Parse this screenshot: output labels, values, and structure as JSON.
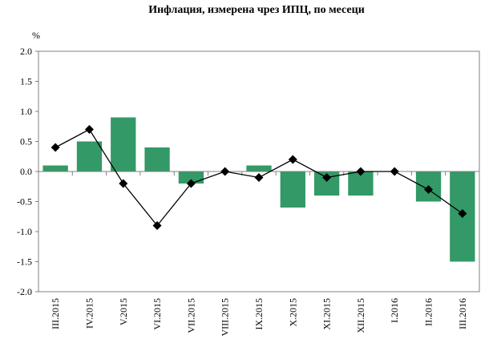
{
  "chart_data": {
    "type": "bar",
    "title": "Инфлация, измерена чрез ИПЦ, по месеци",
    "ylabel": "%",
    "xlabel": "",
    "ylim": [
      -2.0,
      2.0
    ],
    "yticks": [
      "2.0",
      "1.5",
      "1.0",
      "0.5",
      "0.0",
      "-0.5",
      "-1.0",
      "-1.5",
      "-2.0"
    ],
    "categories": [
      "III.2015",
      "IV.2015",
      "V.2015",
      "VI.2015",
      "VII.2015",
      "VIII.2015",
      "IX.2015",
      "X.2015",
      "XI.2015",
      "XII.2015",
      "I.2016",
      "II.2016",
      "III.2016"
    ],
    "series": [
      {
        "kind": "bar",
        "color": "#339966",
        "values": [
          0.1,
          0.5,
          0.9,
          0.4,
          -0.2,
          0.0,
          0.1,
          -0.6,
          -0.4,
          -0.4,
          0.0,
          -0.5,
          -1.5
        ]
      },
      {
        "kind": "line",
        "color": "#000000",
        "marker": "diamond",
        "values": [
          0.4,
          0.7,
          -0.2,
          -0.9,
          -0.2,
          0.0,
          -0.1,
          0.2,
          -0.1,
          0.0,
          0.0,
          -0.3,
          -0.7
        ]
      }
    ],
    "grid": false,
    "legend": "none"
  }
}
